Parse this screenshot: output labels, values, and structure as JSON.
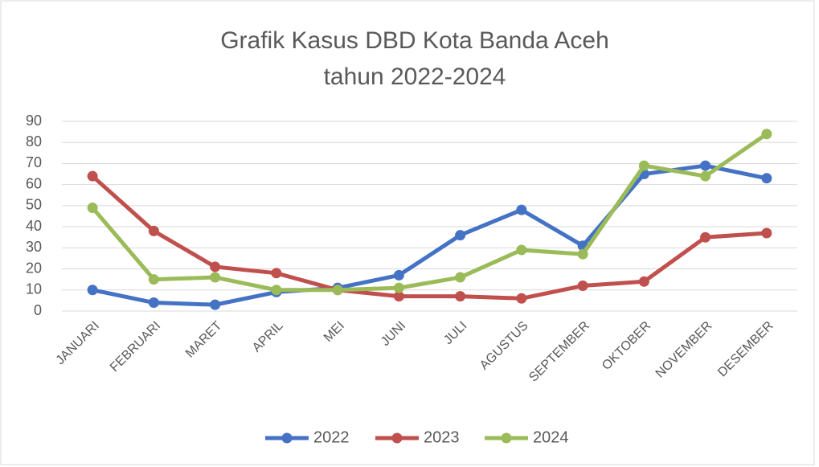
{
  "chart_data": {
    "type": "line",
    "title": [
      "Grafik Kasus DBD Kota Banda Aceh",
      "tahun 2022-2024"
    ],
    "categories": [
      "JANUARI",
      "FEBRUARI",
      "MARET",
      "APRIL",
      "MEI",
      "JUNI",
      "JULI",
      "AGUSTUS",
      "SEPTEMBER",
      "OKTOBER",
      "NOVEMBER",
      "DESEMBER"
    ],
    "series": [
      {
        "name": "2022",
        "color": "#4472c4",
        "values": [
          10,
          4,
          3,
          9,
          11,
          17,
          36,
          48,
          31,
          65,
          69,
          63
        ]
      },
      {
        "name": "2023",
        "color": "#c0504d",
        "values": [
          64,
          38,
          21,
          18,
          10,
          7,
          7,
          6,
          12,
          14,
          35,
          37
        ]
      },
      {
        "name": "2024",
        "color": "#9bbb59",
        "values": [
          49,
          15,
          16,
          10,
          10,
          11,
          16,
          29,
          27,
          69,
          64,
          84
        ]
      }
    ],
    "ylim": [
      0,
      90
    ],
    "yticks": [
      0,
      10,
      20,
      30,
      40,
      50,
      60,
      70,
      80,
      90
    ],
    "grid": true,
    "legend": "bottom"
  }
}
